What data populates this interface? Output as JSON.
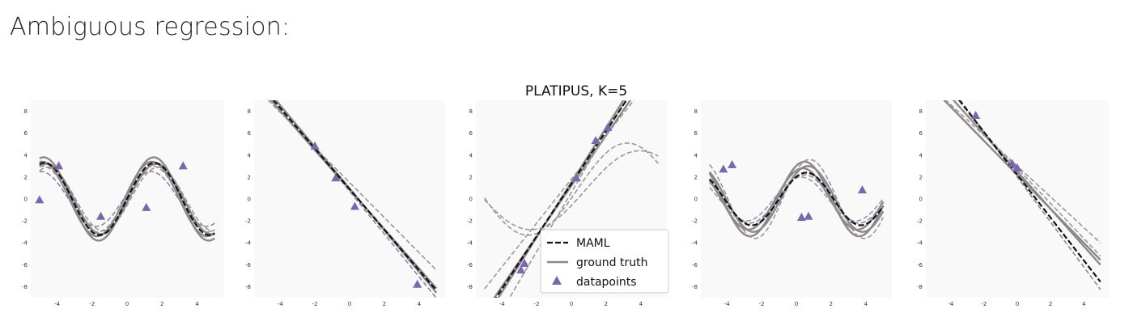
{
  "heading": "Ambiguous regression:",
  "colors": {
    "maml": "#111111",
    "ground_truth": "#8c8789",
    "sample_dash": "#9b979d",
    "sample_blue": "#8b85a8",
    "datapoint": "#7a68ad",
    "background": "#f9f9f9"
  },
  "chart_data": [
    {
      "type": "line",
      "title": "",
      "xlim": [
        -5.5,
        5.5
      ],
      "ylim": [
        -9,
        9
      ],
      "xticks": [
        -4,
        -2,
        0,
        2,
        4
      ],
      "yticks": [
        -8,
        -6,
        -4,
        -2,
        0,
        2,
        4,
        6,
        8
      ],
      "maml": {
        "kind": "sin",
        "amp": 3.3,
        "freq": 1.0,
        "phase": 0.0
      },
      "ground_truth": [
        {
          "kind": "sin",
          "amp": 3.8,
          "freq": 1.0,
          "phase": 0.05
        },
        {
          "kind": "sin",
          "amp": 3.2,
          "freq": 1.0,
          "phase": -0.1
        },
        {
          "kind": "sin",
          "amp": 3.4,
          "freq": 1.0,
          "phase": 0.15
        }
      ],
      "samples": [
        {
          "kind": "sin",
          "amp": 2.5,
          "freq": 1.0,
          "phase": 0.2,
          "color": "blue"
        },
        {
          "kind": "sin",
          "amp": 2.9,
          "freq": 1.0,
          "phase": -0.2,
          "color": "dash"
        },
        {
          "kind": "sin",
          "amp": 3.0,
          "freq": 1.0,
          "phase": 0.1,
          "color": "dash"
        }
      ],
      "datapoints": {
        "x": [
          -5.0,
          -3.9,
          -1.5,
          1.1,
          3.2
        ],
        "y": [
          -0.1,
          3.0,
          -1.6,
          -0.8,
          3.0
        ]
      }
    },
    {
      "type": "line",
      "title": "",
      "xlim": [
        -5.5,
        5.5
      ],
      "ylim": [
        -9,
        9
      ],
      "xticks": [
        -4,
        -2,
        0,
        2,
        4
      ],
      "yticks": [
        -8,
        -6,
        -4,
        -2,
        0,
        2,
        4,
        6,
        8
      ],
      "maml": {
        "kind": "line",
        "slope": -1.85,
        "intercept": 0.9
      },
      "ground_truth": [
        {
          "kind": "line",
          "slope": -1.9,
          "intercept": 0.95
        },
        {
          "kind": "line",
          "slope": -1.8,
          "intercept": 0.85
        }
      ],
      "samples": [
        {
          "kind": "line",
          "slope": -1.6,
          "intercept": 1.5,
          "color": "dash"
        },
        {
          "kind": "line",
          "slope": -1.95,
          "intercept": 0.7,
          "color": "blue"
        }
      ],
      "datapoints": {
        "x": [
          -2.0,
          -0.8,
          0.3,
          3.9
        ],
        "y": [
          4.8,
          1.9,
          -0.7,
          -7.8
        ]
      }
    },
    {
      "type": "line",
      "title": "PLATIPUS, K=5",
      "xlim": [
        -5.5,
        5.5
      ],
      "ylim": [
        -9,
        9
      ],
      "xticks": [
        -4,
        -2,
        0,
        2,
        4
      ],
      "yticks": [
        -8,
        -6,
        -4,
        -2,
        0,
        2,
        4,
        6,
        8
      ],
      "maml": {
        "kind": "line",
        "slope": 2.4,
        "intercept": 1.4
      },
      "ground_truth": [
        {
          "kind": "line",
          "slope": 2.5,
          "intercept": 1.5
        },
        {
          "kind": "line",
          "slope": 2.3,
          "intercept": 1.2
        }
      ],
      "samples": [
        {
          "kind": "line",
          "slope": 2.0,
          "intercept": 1.8,
          "color": "dash"
        },
        {
          "kind": "line",
          "slope": 2.7,
          "intercept": 0.6,
          "color": "dash"
        },
        {
          "kind": "sin",
          "amp": 4.2,
          "freq": 0.55,
          "phase": -0.2,
          "offset": 0.9,
          "color": "dash"
        },
        {
          "kind": "sin",
          "amp": 3.6,
          "freq": 0.5,
          "phase": -0.4,
          "offset": 0.8,
          "color": "dash"
        }
      ],
      "datapoints": {
        "x": [
          -2.9,
          -2.7,
          0.3,
          1.4,
          2.1
        ],
        "y": [
          -6.5,
          -5.9,
          1.9,
          5.3,
          6.5
        ]
      },
      "legend": {
        "position": "lower-right",
        "entries": [
          "MAML",
          "ground truth",
          "datapoints"
        ]
      }
    },
    {
      "type": "line",
      "title": "",
      "xlim": [
        -5.5,
        5.5
      ],
      "ylim": [
        -9,
        9
      ],
      "xticks": [
        -4,
        -2,
        0,
        2,
        4
      ],
      "yticks": [
        -8,
        -6,
        -4,
        -2,
        0,
        2,
        4,
        6,
        8
      ],
      "maml": {
        "kind": "sin",
        "amp": 2.4,
        "freq": 1.0,
        "phase": 1.0,
        "offset": 0.0
      },
      "ground_truth": [
        {
          "kind": "sin",
          "amp": 3.4,
          "freq": 1.0,
          "phase": 1.1
        },
        {
          "kind": "sin",
          "amp": 3.0,
          "freq": 1.0,
          "phase": 0.9
        },
        {
          "kind": "sin",
          "amp": 2.8,
          "freq": 1.0,
          "phase": 1.2
        }
      ],
      "samples": [
        {
          "kind": "sin",
          "amp": 2.0,
          "freq": 1.0,
          "phase": 1.3,
          "color": "dash"
        },
        {
          "kind": "sin",
          "amp": 3.6,
          "freq": 1.0,
          "phase": 0.8,
          "color": "dash"
        },
        {
          "kind": "sin",
          "amp": 2.2,
          "freq": 1.0,
          "phase": 1.1,
          "color": "blue"
        }
      ],
      "datapoints": {
        "x": [
          -4.2,
          -3.7,
          0.3,
          0.7,
          3.8
        ],
        "y": [
          2.7,
          3.1,
          -1.7,
          -1.6,
          0.8
        ]
      }
    },
    {
      "type": "line",
      "title": "",
      "xlim": [
        -5.5,
        5.5
      ],
      "ylim": [
        -9,
        9
      ],
      "xticks": [
        -4,
        -2,
        0,
        2,
        4
      ],
      "yticks": [
        -8,
        -6,
        -4,
        -2,
        0,
        2,
        4,
        6,
        8
      ],
      "maml": {
        "kind": "line",
        "slope": -1.95,
        "intercept": 2.2
      },
      "ground_truth": [
        {
          "kind": "line",
          "slope": -1.7,
          "intercept": 2.5
        },
        {
          "kind": "line",
          "slope": -1.55,
          "intercept": 2.2
        }
      ],
      "samples": [
        {
          "kind": "line",
          "slope": -1.4,
          "intercept": 3.0,
          "color": "dash"
        },
        {
          "kind": "line",
          "slope": -2.05,
          "intercept": 2.0,
          "color": "blue"
        },
        {
          "kind": "line",
          "slope": -1.6,
          "intercept": 2.8,
          "color": "dash"
        }
      ],
      "datapoints": {
        "x": [
          -2.5,
          -0.3,
          0.0
        ],
        "y": [
          7.6,
          3.2,
          2.8
        ]
      }
    }
  ]
}
